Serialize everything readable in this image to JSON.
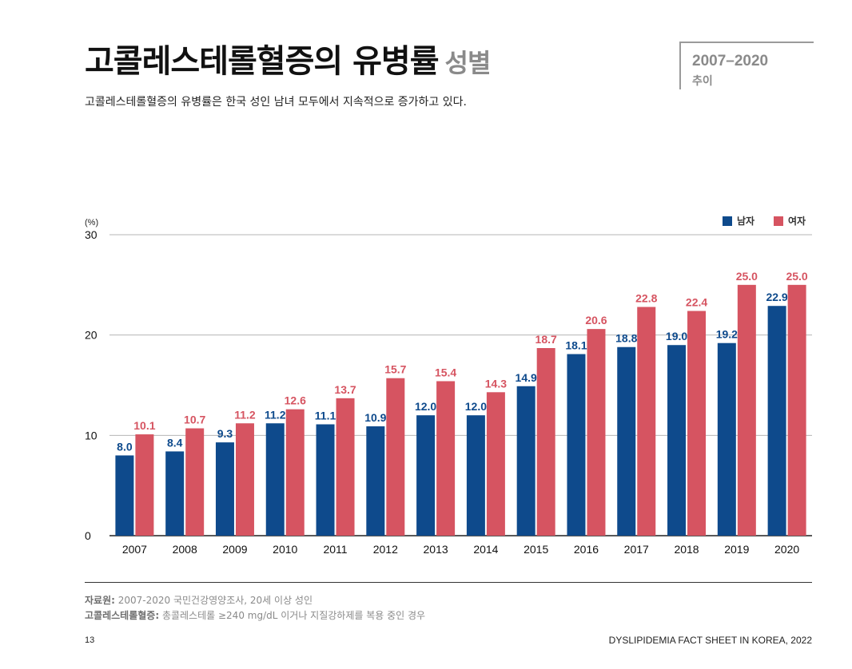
{
  "title": {
    "main": "고콜레스테롤혈증의 유병률",
    "sub": "성별"
  },
  "badge": {
    "years": "2007–2020",
    "trend": "추이"
  },
  "subtitle": "고콜레스테롤혈증의 유병률은 한국 성인 남녀 모두에서 지속적으로 증가하고 있다.",
  "legend": {
    "male": "남자",
    "female": "여자"
  },
  "chart_data": {
    "type": "bar",
    "unit_label": "(%)",
    "categories": [
      "2007",
      "2008",
      "2009",
      "2010",
      "2011",
      "2012",
      "2013",
      "2014",
      "2015",
      "2016",
      "2017",
      "2018",
      "2019",
      "2020"
    ],
    "series": [
      {
        "name": "남자",
        "color": "#0e4a8c",
        "values": [
          8.0,
          8.4,
          9.3,
          11.2,
          11.1,
          10.9,
          12.0,
          12.0,
          14.9,
          18.1,
          18.8,
          19.0,
          19.2,
          22.9
        ],
        "labels": [
          "8.0",
          "8.4",
          "9.3",
          "11.2",
          "11.1",
          "10.9",
          "12.0",
          "12.0",
          "14.9",
          "18.1",
          "18.8",
          "19.0",
          "19.2",
          "22.9"
        ]
      },
      {
        "name": "여자",
        "color": "#d65461",
        "values": [
          10.1,
          10.7,
          11.2,
          12.6,
          13.7,
          15.7,
          15.4,
          14.3,
          18.7,
          20.6,
          22.8,
          22.4,
          25.0,
          25.0
        ],
        "labels": [
          "10.1",
          "10.7",
          "11.2",
          "12.6",
          "13.7",
          "15.7",
          "15.4",
          "14.3",
          "18.7",
          "20.6",
          "22.8",
          "22.4",
          "25.0",
          "25.0"
        ]
      }
    ],
    "yticks": [
      "0",
      "10",
      "20",
      "30"
    ],
    "ylim": [
      0,
      30
    ],
    "grid": true,
    "legend_position": "top-right"
  },
  "footer": {
    "source_label": "자료원:",
    "source_text": " 2007-2020 국민건강영양조사, 20세 이상 성인",
    "note_label": "고콜레스테롤혈증:",
    "note_text": " 총콜레스테롤 ≥240 mg/dL 이거나 지질강하제를 복용 중인 경우",
    "page": "13",
    "publication": "DYSLIPIDEMIA FACT SHEET IN KOREA, 2022"
  }
}
